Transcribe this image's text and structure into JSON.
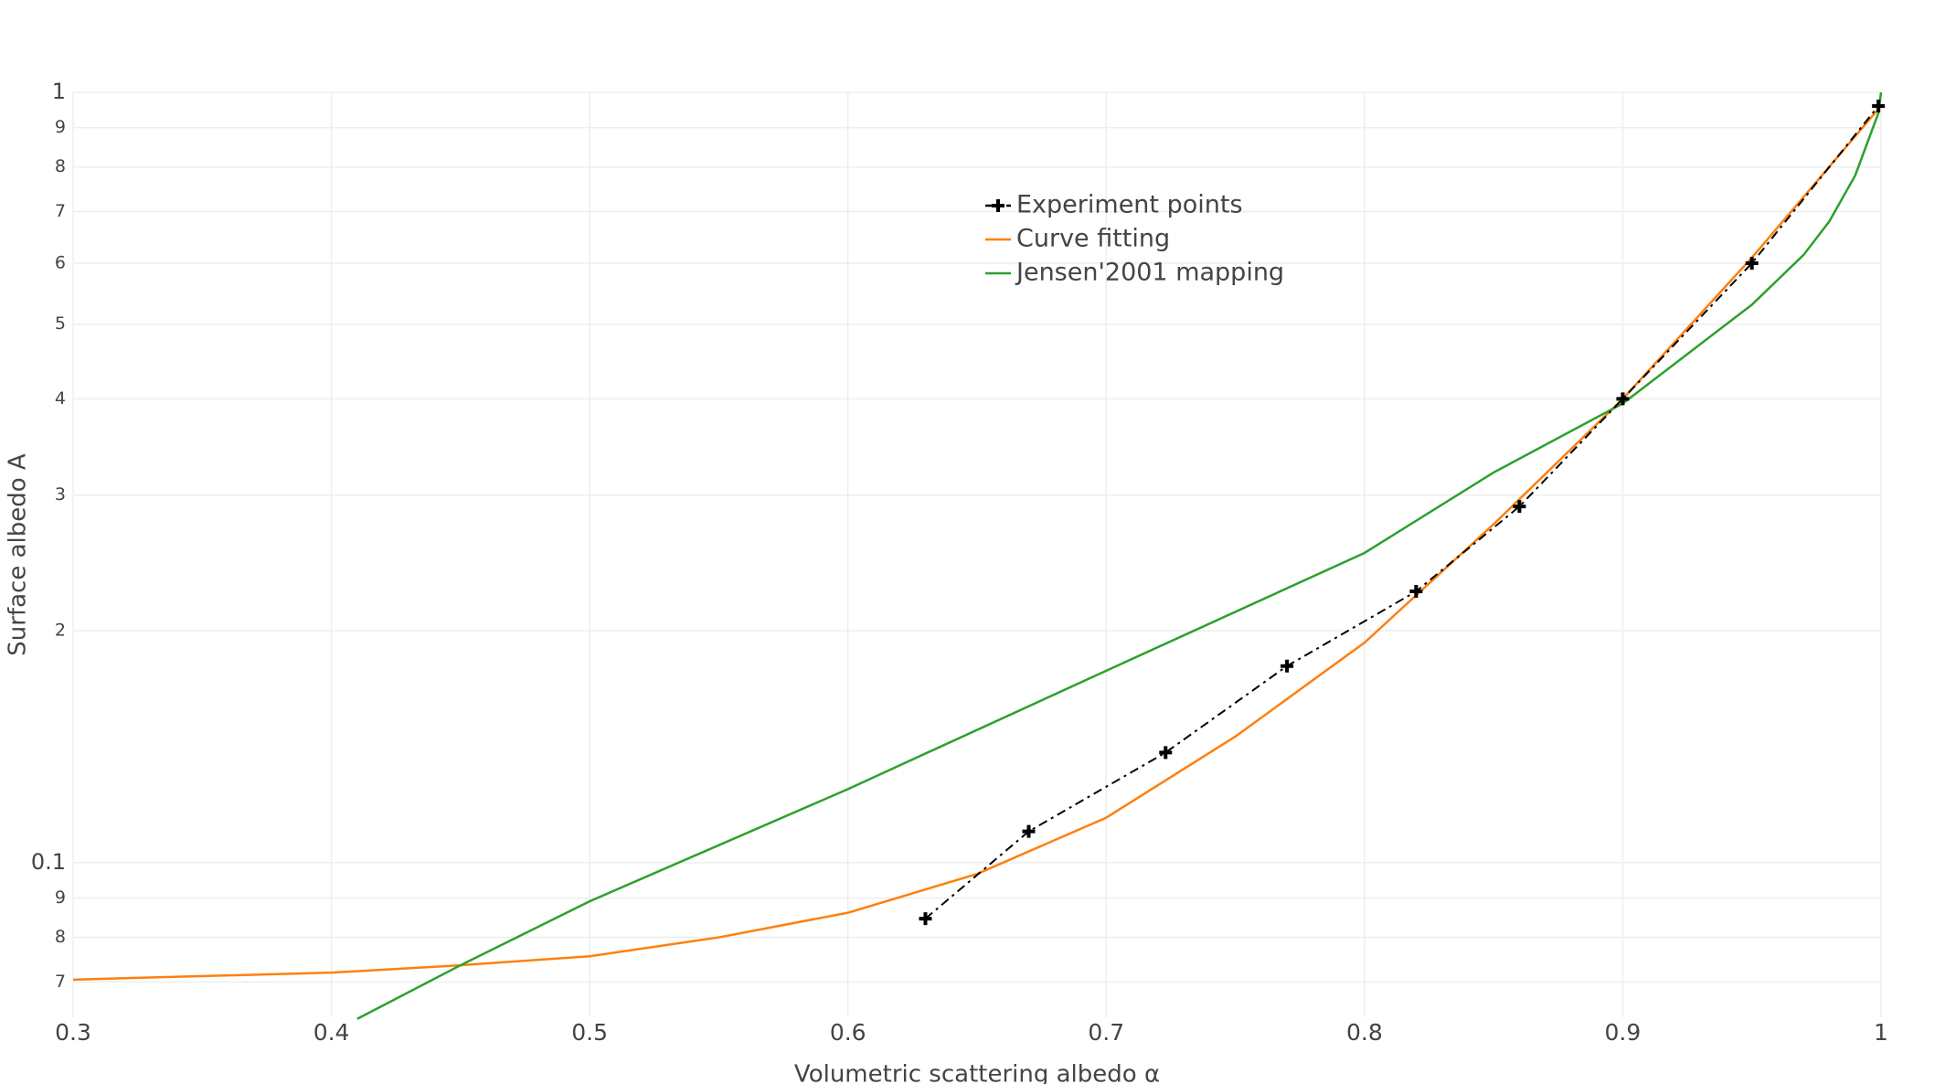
{
  "chart_data": {
    "type": "line",
    "x_label": "Volumetric scattering albedo α",
    "y_label": "Surface albedo A",
    "xlim": [
      0.3,
      1
    ],
    "xticks": [
      0.3,
      0.4,
      0.5,
      0.6,
      0.7,
      0.8,
      0.9,
      1
    ],
    "ylim": [
      0.063,
      1
    ],
    "y_log": true,
    "yticks": [
      {
        "value": 0.07,
        "label": "7"
      },
      {
        "value": 0.08,
        "label": "8"
      },
      {
        "value": 0.09,
        "label": "9"
      },
      0.1,
      {
        "value": 0.2,
        "label": "2"
      },
      {
        "value": 0.3,
        "label": "3"
      },
      {
        "value": 0.4,
        "label": "4"
      },
      {
        "value": 0.5,
        "label": "5"
      },
      {
        "value": 0.6,
        "label": "6"
      },
      {
        "value": 0.7,
        "label": "7"
      },
      {
        "value": 0.8,
        "label": "8"
      },
      {
        "value": 0.9,
        "label": "9"
      },
      1
    ],
    "grid": true,
    "legend": "top-center",
    "series": [
      {
        "name": "Experiment points",
        "color": "#000000",
        "dash": "dashdot",
        "marker": "cross",
        "x": [
          0.63,
          0.67,
          0.723,
          0.77,
          0.82,
          0.86,
          0.9,
          0.95,
          0.999
        ],
        "values": [
          0.0846,
          0.1098,
          0.139,
          0.18,
          0.225,
          0.29,
          0.4,
          0.6,
          0.96
        ]
      },
      {
        "name": "Curve fitting",
        "color": "#ff7f0e",
        "x": [
          0.3,
          0.4,
          0.45,
          0.5,
          0.55,
          0.6,
          0.65,
          0.7,
          0.75,
          0.8,
          0.85,
          0.9,
          0.95,
          1
        ],
        "values": [
          0.0705,
          0.072,
          0.0736,
          0.0756,
          0.08,
          0.0861,
          0.0967,
          0.1144,
          0.1458,
          0.193,
          0.275,
          0.4,
          0.61,
          0.96
        ]
      },
      {
        "name": "Jensen'2001 mapping",
        "color": "#2ca02c",
        "x": [
          0.41,
          0.45,
          0.5,
          0.6,
          0.7,
          0.8,
          0.85,
          0.9,
          0.95,
          0.97,
          0.98,
          0.99,
          0.999,
          1
        ],
        "values": [
          0.0627,
          0.0736,
          0.0891,
          0.1246,
          0.1775,
          0.2524,
          0.321,
          0.3945,
          0.53,
          0.615,
          0.68,
          0.78,
          0.94,
          1
        ]
      }
    ]
  }
}
